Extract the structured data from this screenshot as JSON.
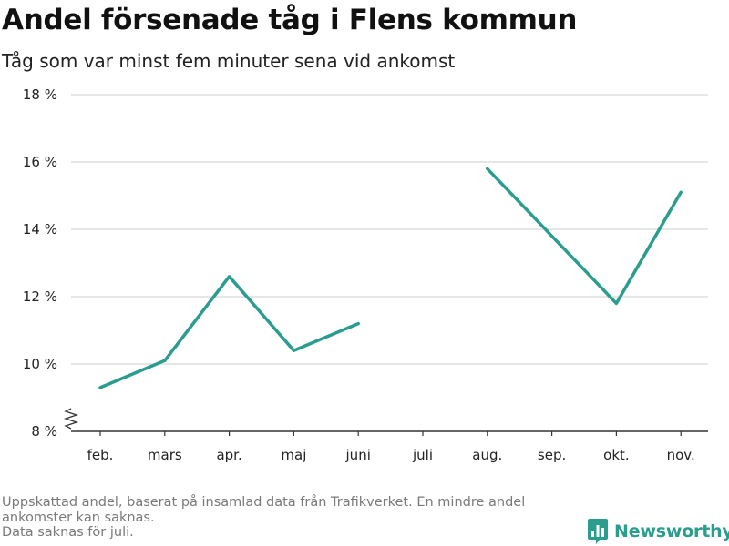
{
  "header": {
    "title": "Andel försenade tåg i Flens kommun",
    "subtitle": "Tåg som var minst fem minuter sena vid ankomst"
  },
  "footnote": {
    "line1": "Uppskattad andel, baserat på insamlad data från Trafikverket. En mindre andel",
    "line2": "ankomster kan saknas.",
    "line3": "Data saknas för juli."
  },
  "brand": {
    "name": "Newsworthy",
    "logo_icon": "bar-chart-logo-icon",
    "color": "#2a9d8f"
  },
  "chart_data": {
    "type": "line",
    "title": "Andel försenade tåg i Flens kommun",
    "subtitle": "Tåg som var minst fem minuter sena vid ankomst",
    "xlabel": "",
    "ylabel": "",
    "categories": [
      "feb.",
      "mars",
      "apr.",
      "maj",
      "juni",
      "juli",
      "aug.",
      "sep.",
      "okt.",
      "nov."
    ],
    "series": [
      {
        "values": [
          9.3,
          10.1,
          12.6,
          10.4,
          11.2,
          null,
          15.8,
          13.8,
          11.8,
          15.1
        ],
        "color": "#2a9d8f"
      }
    ],
    "ylim": [
      8,
      18
    ],
    "yticks": [
      8,
      10,
      12,
      14,
      16,
      18
    ],
    "ytick_labels": [
      "8 %",
      "10 %",
      "12 %",
      "14 %",
      "16 %",
      "18 %"
    ],
    "y_axis_break": true,
    "grid": true,
    "gridline_color": "#dddddd",
    "legend": "none"
  }
}
